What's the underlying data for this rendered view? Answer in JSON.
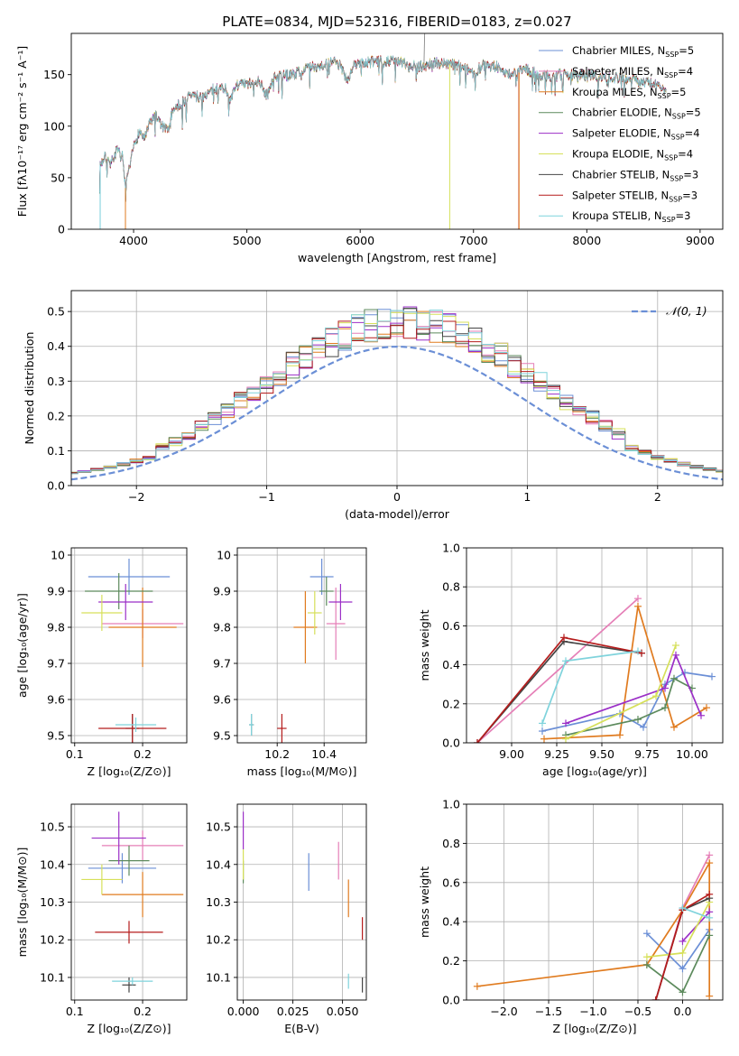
{
  "title": "PLATE=0834, MJD=52316, FIBERID=0183, z=0.027",
  "model_colors": [
    "#6b8fd6",
    "#e57fb7",
    "#e07b1f",
    "#5c8a5c",
    "#9b2fc7",
    "#d6e05a",
    "#444444",
    "#b51c1c",
    "#7fd3dc"
  ],
  "chart_data": [
    {
      "id": "spectrum",
      "type": "line",
      "xlabel": "wavelength [Angstrom, rest frame]",
      "ylabel": "Flux [fλ10⁻¹⁷ erg cm⁻² s⁻¹ A⁻¹]",
      "xlim": [
        3450,
        9200
      ],
      "ylim": [
        0,
        190
      ],
      "xticks": [
        4000,
        5000,
        6000,
        7000,
        8000,
        9000
      ],
      "yticks": [
        0,
        50,
        100,
        150
      ],
      "legend_position": "upper-right",
      "legend": [
        "Chabrier MILES, N_SSP=5",
        "Salpeter MILES, N_SSP=4",
        "Kroupa MILES, N_SSP=5",
        "Chabrier ELODIE, N_SSP=5",
        "Salpeter ELODIE, N_SSP=4",
        "Kroupa ELODIE, N_SSP=4",
        "Chabrier STELIB, N_SSP=3",
        "Salpeter STELIB, N_SSP=3",
        "Kroupa STELIB, N_SSP=3"
      ],
      "legend_labels": [
        {
          "pre": "Chabrier MILES, N",
          "sub": "SSP",
          "post": "=5"
        },
        {
          "pre": "Salpeter MILES, N",
          "sub": "SSP",
          "post": "=4"
        },
        {
          "pre": "Kroupa MILES, N",
          "sub": "SSP",
          "post": "=5"
        },
        {
          "pre": "Chabrier ELODIE, N",
          "sub": "SSP",
          "post": "=5"
        },
        {
          "pre": "Salpeter ELODIE, N",
          "sub": "SSP",
          "post": "=4"
        },
        {
          "pre": "Kroupa ELODIE, N",
          "sub": "SSP",
          "post": "=4"
        },
        {
          "pre": "Chabrier STELIB, N",
          "sub": "SSP",
          "post": "=3"
        },
        {
          "pre": "Salpeter STELIB, N",
          "sub": "SSP",
          "post": "=3"
        },
        {
          "pre": "Kroupa STELIB, N",
          "sub": "SSP",
          "post": "=3"
        }
      ],
      "spectrum_points": [
        [
          3700,
          62
        ],
        [
          3750,
          70
        ],
        [
          3800,
          64
        ],
        [
          3850,
          76
        ],
        [
          3900,
          70
        ],
        [
          3930,
          40
        ],
        [
          3970,
          62
        ],
        [
          4000,
          80
        ],
        [
          4050,
          95
        ],
        [
          4100,
          88
        ],
        [
          4150,
          105
        ],
        [
          4200,
          110
        ],
        [
          4250,
          100
        ],
        [
          4300,
          95
        ],
        [
          4350,
          118
        ],
        [
          4400,
          120
        ],
        [
          4450,
          125
        ],
        [
          4500,
          130
        ],
        [
          4600,
          128
        ],
        [
          4700,
          135
        ],
        [
          4800,
          138
        ],
        [
          4861,
          125
        ],
        [
          4900,
          140
        ],
        [
          5000,
          140
        ],
        [
          5100,
          145
        ],
        [
          5175,
          130
        ],
        [
          5250,
          148
        ],
        [
          5400,
          150
        ],
        [
          5500,
          155
        ],
        [
          5600,
          158
        ],
        [
          5700,
          160
        ],
        [
          5800,
          162
        ],
        [
          5893,
          145
        ],
        [
          5950,
          160
        ],
        [
          6100,
          162
        ],
        [
          6200,
          163
        ],
        [
          6300,
          164
        ],
        [
          6400,
          160
        ],
        [
          6563,
          158
        ],
        [
          6650,
          162
        ],
        [
          6800,
          160
        ],
        [
          6900,
          158
        ],
        [
          7000,
          152
        ],
        [
          7100,
          160
        ],
        [
          7200,
          158
        ],
        [
          7300,
          150
        ],
        [
          7450,
          155
        ],
        [
          7600,
          150
        ],
        [
          7700,
          148
        ],
        [
          7800,
          150
        ],
        [
          8000,
          150
        ],
        [
          8200,
          148
        ],
        [
          8400,
          145
        ],
        [
          8600,
          140
        ],
        [
          8700,
          135
        ]
      ],
      "drops": [
        {
          "series": 0,
          "x": 3705,
          "y_from": 62,
          "y_to": 0
        },
        {
          "series": 8,
          "x": 3705,
          "y_from": 62,
          "y_to": 0
        },
        {
          "series": 2,
          "x": 3928,
          "y_from": 40,
          "y_to": 0
        },
        {
          "series": 5,
          "x": 6790,
          "y_from": 160,
          "y_to": 0
        },
        {
          "series": 7,
          "x": 7400,
          "y_from": 152,
          "y_to": 0
        },
        {
          "series": 2,
          "x": 7402,
          "y_from": 152,
          "y_to": 0
        }
      ],
      "spike": {
        "x": 6563,
        "y_to": 190
      }
    },
    {
      "id": "residuals",
      "type": "histogram",
      "xlabel": "(data-model)/error",
      "ylabel": "Normed distribution",
      "xlim": [
        -2.5,
        2.5
      ],
      "ylim": [
        0,
        0.56
      ],
      "xticks": [
        -2,
        -1,
        0,
        1,
        2
      ],
      "xtick_labels": [
        "−2",
        "−1",
        "0",
        "1",
        "2"
      ],
      "yticks": [
        0,
        0.1,
        0.2,
        0.3,
        0.4,
        0.5
      ],
      "ytick_labels": [
        "0.0",
        "0.1",
        "0.2",
        "0.3",
        "0.4",
        "0.5"
      ],
      "bin_width": 0.1,
      "reference_curve": {
        "name": "𝒩(0, 1)",
        "color": "#6b8fd6",
        "mean": 0,
        "sigma": 1
      },
      "legend_position": "upper-right"
    },
    {
      "id": "age_vs_z",
      "type": "errorbar",
      "xlabel": "Z [log₁₀(Z/Z⊙)]",
      "ylabel": "age  [log₁₀(age/yr)]",
      "xlim": [
        0.095,
        0.265
      ],
      "ylim": [
        9.48,
        10.02
      ],
      "xticks": [
        0.1,
        0.2
      ],
      "yticks": [
        9.5,
        9.6,
        9.7,
        9.8,
        9.9,
        10.0
      ],
      "points": [
        {
          "x": 0.18,
          "y": 9.94,
          "xerr": 0.06,
          "yerr": 0.05,
          "series": 0
        },
        {
          "x": 0.2,
          "y": 9.81,
          "xerr": 0.06,
          "yerr": 0.04,
          "series": 1
        },
        {
          "x": 0.2,
          "y": 9.8,
          "xerr": 0.05,
          "yerr": 0.11,
          "series": 2
        },
        {
          "x": 0.165,
          "y": 9.9,
          "xerr": 0.05,
          "yerr": 0.05,
          "series": 3
        },
        {
          "x": 0.175,
          "y": 9.87,
          "xerr": 0.04,
          "yerr": 0.05,
          "series": 4
        },
        {
          "x": 0.14,
          "y": 9.84,
          "xerr": 0.03,
          "yerr": 0.05,
          "series": 5
        },
        {
          "x": 0.185,
          "y": 9.52,
          "xerr": 0.01,
          "yerr": 0.04,
          "series": 6
        },
        {
          "x": 0.185,
          "y": 9.52,
          "xerr": 0.05,
          "yerr": 0.04,
          "series": 7
        },
        {
          "x": 0.19,
          "y": 9.53,
          "xerr": 0.03,
          "yerr": 0.02,
          "series": 8
        }
      ]
    },
    {
      "id": "age_vs_mass",
      "type": "errorbar",
      "xlabel": "mass [log₁₀(M/M⊙)]",
      "ylabel": "",
      "xlim": [
        10.03,
        10.58
      ],
      "ylim": [
        9.48,
        10.02
      ],
      "xticks": [
        10.2,
        10.4
      ],
      "yticks": [
        9.5,
        9.6,
        9.7,
        9.8,
        9.9,
        10.0
      ],
      "points": [
        {
          "x": 10.39,
          "y": 9.94,
          "xerr": 0.05,
          "yerr": 0.05,
          "series": 0
        },
        {
          "x": 10.45,
          "y": 9.81,
          "xerr": 0.04,
          "yerr": 0.1,
          "series": 1
        },
        {
          "x": 10.32,
          "y": 9.8,
          "xerr": 0.05,
          "yerr": 0.1,
          "series": 2
        },
        {
          "x": 10.41,
          "y": 9.9,
          "xerr": 0.03,
          "yerr": 0.04,
          "series": 3
        },
        {
          "x": 10.47,
          "y": 9.87,
          "xerr": 0.05,
          "yerr": 0.05,
          "series": 4
        },
        {
          "x": 10.36,
          "y": 9.84,
          "xerr": 0.03,
          "yerr": 0.06,
          "series": 5
        },
        {
          "x": 10.09,
          "y": 9.53,
          "xerr": 0.01,
          "yerr": 0.03,
          "series": 6
        },
        {
          "x": 10.22,
          "y": 9.52,
          "xerr": 0.02,
          "yerr": 0.04,
          "series": 7
        },
        {
          "x": 10.09,
          "y": 9.53,
          "xerr": 0.01,
          "yerr": 0.03,
          "series": 8
        }
      ]
    },
    {
      "id": "weight_vs_age",
      "type": "line",
      "xlabel": "age  [log₁₀(age/yr)]",
      "ylabel": "mass weight",
      "xlim": [
        8.75,
        10.17
      ],
      "ylim": [
        0,
        1.0
      ],
      "xticks": [
        9.0,
        9.25,
        9.5,
        9.75,
        10.0
      ],
      "xtick_labels": [
        "9.00",
        "9.25",
        "9.50",
        "9.75",
        "10.00"
      ],
      "yticks": [
        0,
        0.2,
        0.4,
        0.6,
        0.8,
        1.0
      ],
      "ytick_labels": [
        "0.0",
        "0.2",
        "0.4",
        "0.6",
        "0.8",
        "1.0"
      ],
      "series": [
        {
          "series": 0,
          "x": [
            9.17,
            9.6,
            9.73,
            9.85,
            9.96,
            10.11
          ],
          "y": [
            0.06,
            0.15,
            0.08,
            0.3,
            0.36,
            0.34
          ]
        },
        {
          "series": 1,
          "x": [
            8.81,
            9.7
          ],
          "y": [
            0.0,
            0.74
          ]
        },
        {
          "series": 2,
          "x": [
            9.18,
            9.6,
            9.7,
            9.9,
            10.08
          ],
          "y": [
            0.02,
            0.04,
            0.7,
            0.08,
            0.18
          ]
        },
        {
          "series": 3,
          "x": [
            9.3,
            9.7,
            9.85,
            9.9,
            10.0
          ],
          "y": [
            0.04,
            0.12,
            0.18,
            0.33,
            0.28
          ]
        },
        {
          "series": 4,
          "x": [
            9.3,
            9.85,
            9.91,
            10.05
          ],
          "y": [
            0.1,
            0.28,
            0.45,
            0.14
          ]
        },
        {
          "series": 5,
          "x": [
            9.3,
            9.8,
            9.91
          ],
          "y": [
            0.02,
            0.24,
            0.5
          ]
        },
        {
          "series": 6,
          "x": [
            8.81,
            9.29,
            9.72
          ],
          "y": [
            0.0,
            0.52,
            0.46
          ]
        },
        {
          "series": 7,
          "x": [
            8.81,
            9.29,
            9.72
          ],
          "y": [
            0.0,
            0.54,
            0.46
          ]
        },
        {
          "series": 8,
          "x": [
            9.17,
            9.3,
            9.7
          ],
          "y": [
            0.1,
            0.42,
            0.47
          ]
        }
      ]
    },
    {
      "id": "mass_vs_z",
      "type": "errorbar",
      "xlabel": "Z [log₁₀(Z/Z⊙)]",
      "ylabel": "mass [log₁₀(M/M⊙)]",
      "xlim": [
        0.095,
        0.265
      ],
      "ylim": [
        10.04,
        10.56
      ],
      "xticks": [
        0.1,
        0.2
      ],
      "yticks": [
        10.1,
        10.2,
        10.3,
        10.4,
        10.5
      ],
      "points": [
        {
          "x": 0.17,
          "y": 10.39,
          "xerr": 0.05,
          "yerr": 0.04,
          "series": 0
        },
        {
          "x": 0.2,
          "y": 10.45,
          "xerr": 0.06,
          "yerr": 0.04,
          "series": 1
        },
        {
          "x": 0.2,
          "y": 10.32,
          "xerr": 0.06,
          "yerr": 0.06,
          "series": 2
        },
        {
          "x": 0.18,
          "y": 10.41,
          "xerr": 0.03,
          "yerr": 0.04,
          "series": 3
        },
        {
          "x": 0.165,
          "y": 10.47,
          "xerr": 0.04,
          "yerr": 0.07,
          "series": 4
        },
        {
          "x": 0.14,
          "y": 10.36,
          "xerr": 0.03,
          "yerr": 0.04,
          "series": 5
        },
        {
          "x": 0.18,
          "y": 10.08,
          "xerr": 0.01,
          "yerr": 0.02,
          "series": 6
        },
        {
          "x": 0.18,
          "y": 10.22,
          "xerr": 0.05,
          "yerr": 0.03,
          "series": 7
        },
        {
          "x": 0.185,
          "y": 10.09,
          "xerr": 0.03,
          "yerr": 0.01,
          "series": 8
        }
      ]
    },
    {
      "id": "mass_vs_ebv",
      "type": "errorbar",
      "xlabel": "E(B-V)",
      "ylabel": "",
      "xlim": [
        -0.003,
        0.062
      ],
      "ylim": [
        10.04,
        10.56
      ],
      "xticks": [
        0.0,
        0.025,
        0.05
      ],
      "xtick_labels": [
        "0.000",
        "0.025",
        "0.050"
      ],
      "yticks": [
        10.1,
        10.2,
        10.3,
        10.4,
        10.5
      ],
      "points": [
        {
          "x": 0.033,
          "y": 10.38,
          "xerr": 0,
          "yerr": 0.05,
          "series": 0
        },
        {
          "x": 0.048,
          "y": 10.41,
          "xerr": 0,
          "yerr": 0.05,
          "series": 1
        },
        {
          "x": 0.053,
          "y": 10.31,
          "xerr": 0,
          "yerr": 0.05,
          "series": 2
        },
        {
          "x": 0.0,
          "y": 10.38,
          "xerr": 0,
          "yerr": 0.03,
          "series": 3
        },
        {
          "x": 0.0,
          "y": 10.49,
          "xerr": 0,
          "yerr": 0.05,
          "series": 4
        },
        {
          "x": 0.0,
          "y": 10.4,
          "xerr": 0,
          "yerr": 0.04,
          "series": 5
        },
        {
          "x": 0.06,
          "y": 10.08,
          "xerr": 0,
          "yerr": 0.02,
          "series": 6
        },
        {
          "x": 0.06,
          "y": 10.23,
          "xerr": 0,
          "yerr": 0.03,
          "series": 7
        },
        {
          "x": 0.053,
          "y": 10.09,
          "xerr": 0,
          "yerr": 0.02,
          "series": 8
        }
      ]
    },
    {
      "id": "weight_vs_z",
      "type": "line",
      "xlabel": "Z [log₁₀(Z/Z⊙)]",
      "ylabel": "mass weight",
      "xlim": [
        -2.42,
        0.45
      ],
      "ylim": [
        0,
        1.0
      ],
      "xticks": [
        -2.0,
        -1.5,
        -1.0,
        -0.5,
        0.0
      ],
      "xtick_labels": [
        "−2.0",
        "−1.5",
        "−1.0",
        "−0.5",
        "0.0"
      ],
      "yticks": [
        0,
        0.2,
        0.4,
        0.6,
        0.8,
        1.0
      ],
      "ytick_labels": [
        "0.0",
        "0.2",
        "0.4",
        "0.6",
        "0.8",
        "1.0"
      ],
      "series": [
        {
          "series": 0,
          "x": [
            -0.4,
            0,
            0.3
          ],
          "y": [
            0.34,
            0.16,
            0.36
          ]
        },
        {
          "series": 1,
          "x": [
            -0.3,
            0,
            0.3
          ],
          "y": [
            0.0,
            0.47,
            0.74
          ]
        },
        {
          "series": 2,
          "x": [
            -2.3,
            -0.4,
            0,
            0.3,
            0.3
          ],
          "y": [
            0.07,
            0.18,
            0.46,
            0.7,
            0.02
          ]
        },
        {
          "series": 3,
          "x": [
            -0.4,
            0,
            0.3
          ],
          "y": [
            0.18,
            0.04,
            0.33
          ]
        },
        {
          "series": 4,
          "x": [
            0,
            0.3
          ],
          "y": [
            0.3,
            0.45
          ]
        },
        {
          "series": 5,
          "x": [
            -0.4,
            0,
            0.3
          ],
          "y": [
            0.22,
            0.24,
            0.5
          ]
        },
        {
          "series": 6,
          "x": [
            -0.3,
            0,
            0.3
          ],
          "y": [
            0.0,
            0.46,
            0.52
          ]
        },
        {
          "series": 7,
          "x": [
            -0.3,
            0,
            0.3
          ],
          "y": [
            0.0,
            0.46,
            0.54
          ]
        },
        {
          "series": 8,
          "x": [
            0,
            0.3
          ],
          "y": [
            0.47,
            0.42
          ]
        }
      ]
    }
  ]
}
